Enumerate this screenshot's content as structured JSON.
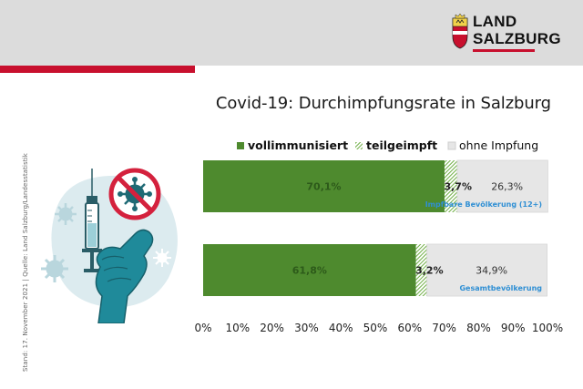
{
  "header": {
    "logo_line1": "LAND",
    "logo_line2": "SALZBURG",
    "brand_color": "#c8102e"
  },
  "source_note": "Stand: 17. November 2021 | Quelle: Land Salzburg/Landesstatistik",
  "illustration": {
    "icons": [
      "syringe-icon",
      "hand-icon",
      "virus-prohibited-icon",
      "virus-icon"
    ]
  },
  "chart_data": {
    "type": "bar",
    "orientation": "horizontal",
    "stacked": true,
    "title": "Covid-19: Durchimpfungsrate in Salzburg",
    "categories": [
      "Impfbare Bevölkerung (12+)",
      "Gesamtbevölkerung"
    ],
    "category_labels": [
      "Impfbare Bevölkerung (12+)",
      "Gesamtbevölkerung"
    ],
    "series": [
      {
        "name": "vollimmunisiert",
        "values": [
          70.1,
          61.8
        ],
        "labels": [
          "70,1%",
          "61,8%"
        ],
        "color": "#4e8a2e",
        "pattern": "solid"
      },
      {
        "name": "teilgeimpft",
        "values": [
          3.7,
          3.2
        ],
        "labels": [
          "3,7%",
          "3,2%"
        ],
        "color": "#8fc16a",
        "pattern": "hatched"
      },
      {
        "name": "ohne Impfung",
        "values": [
          26.3,
          34.9
        ],
        "labels": [
          "26,3%",
          "34,9%"
        ],
        "color": "#e6e6e6",
        "pattern": "solid"
      }
    ],
    "xlim": [
      0,
      100
    ],
    "x_ticks": [
      0,
      10,
      20,
      30,
      40,
      50,
      60,
      70,
      80,
      90,
      100
    ],
    "x_tick_labels": [
      "0%",
      "10%",
      "20%",
      "30%",
      "40%",
      "50%",
      "60%",
      "70%",
      "80%",
      "90%",
      "100%"
    ],
    "legend_position": "top",
    "grid": false,
    "category_label_color": "#2f8fd4",
    "value_label_color_dark": "#2d5a1a",
    "value_label_color": "#333333"
  }
}
